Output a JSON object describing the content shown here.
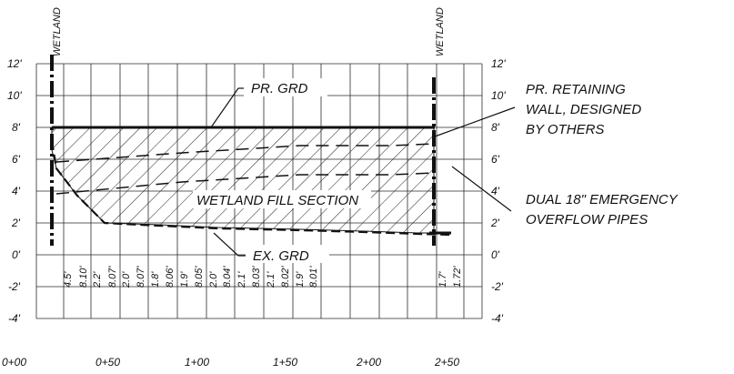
{
  "wetland_label": "WETLAND",
  "elevation_ticks": [
    "12'",
    "10'",
    "8'",
    "6'",
    "4'",
    "2'",
    "0'",
    "-2'",
    "-4'"
  ],
  "stations": [
    "0+00",
    "0+50",
    "1+00",
    "1+50",
    "2+00",
    "2+50"
  ],
  "elevation_values": [
    "4.5'",
    "8.10'",
    "2.2'",
    "8.07'",
    "2.0'",
    "8.07'",
    "1.8'",
    "8.06'",
    "1.9'",
    "8.05'",
    "2.0'",
    "8.04'",
    "2.1'",
    "8.03'",
    "2.1'",
    "8.02'",
    "1.9'",
    "8.01'",
    "1.7'",
    "1.72'"
  ],
  "callouts": {
    "proposed_grade": "PR. GRD",
    "existing_grade": "EX. GRD",
    "fill_section": "WETLAND FILL SECTION",
    "retaining_wall_line1": "PR. RETAINING",
    "retaining_wall_line2": "WALL, DESIGNED",
    "retaining_wall_line3": "BY OTHERS",
    "pipes_line1": "DUAL 18\" EMERGENCY",
    "pipes_line2": "OVERFLOW PIPES"
  },
  "colors": {
    "ink": "#111111",
    "grid": "#2a2a2a",
    "background": "#ffffff"
  }
}
